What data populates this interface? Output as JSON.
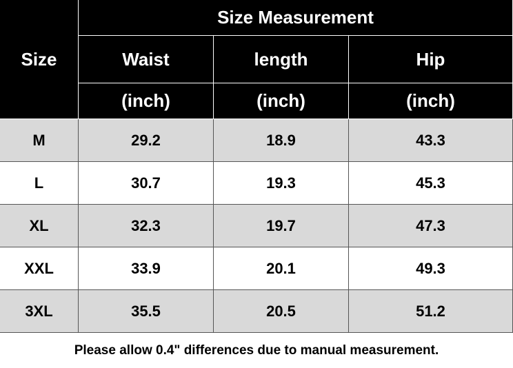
{
  "table": {
    "size_header": "Size",
    "title": "Size Measurement",
    "columns": [
      {
        "name": "Waist",
        "unit": "(inch)"
      },
      {
        "name": "length",
        "unit": "(inch)"
      },
      {
        "name": "Hip",
        "unit": "(inch)"
      }
    ],
    "rows": [
      [
        "M",
        "29.2",
        "18.9",
        "43.3"
      ],
      [
        "L",
        "30.7",
        "19.3",
        "45.3"
      ],
      [
        "XL",
        "32.3",
        "19.7",
        "47.3"
      ],
      [
        "XXL",
        "33.9",
        "20.1",
        "49.3"
      ],
      [
        "3XL",
        "35.5",
        "20.5",
        "51.2"
      ]
    ],
    "note": "Please allow 0.4\" differences due to manual measurement."
  }
}
